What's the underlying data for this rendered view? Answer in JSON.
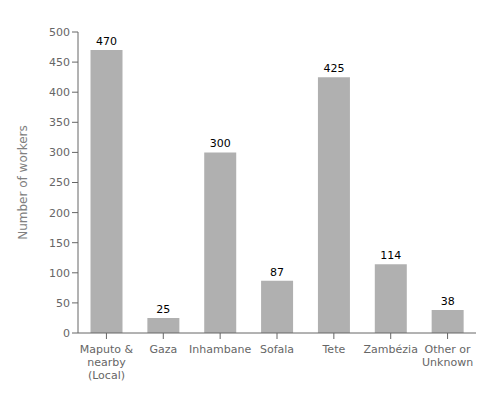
{
  "chart_data": {
    "type": "bar",
    "categories": [
      "Maputo &\nnearby\n(Local)",
      "Gaza",
      "Inhambane",
      "Sofala",
      "Tete",
      "Zambézia",
      "Other or\nUnknown"
    ],
    "values": [
      470,
      25,
      300,
      87,
      425,
      114,
      38
    ],
    "color": "#b0b0b0",
    "ylabel": "Number of workers",
    "ylim": [
      0,
      500
    ],
    "yticks": [
      0,
      50,
      100,
      150,
      200,
      250,
      300,
      350,
      400,
      450,
      500
    ],
    "grid": false,
    "data_labels": true
  }
}
